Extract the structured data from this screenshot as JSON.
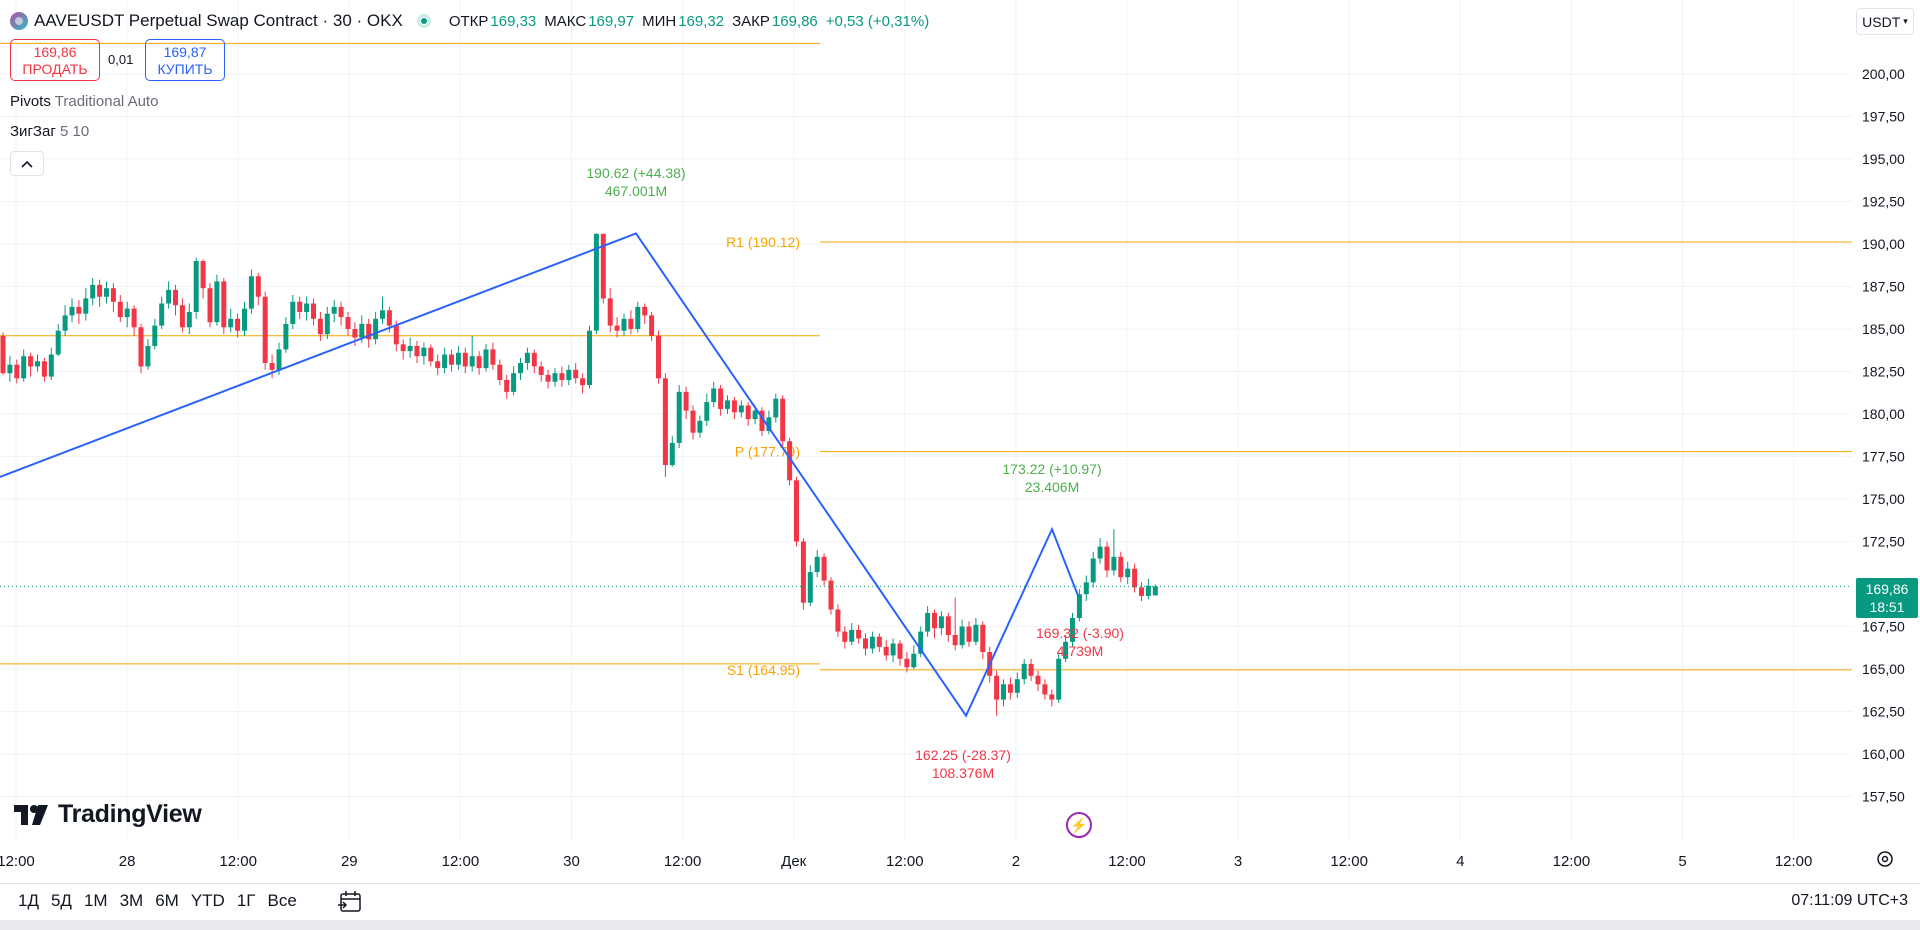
{
  "header": {
    "symbol_title": "AAVEUSDT Perpetual Swap Contract · 30 · OKX",
    "open_label": "ОТКР",
    "open_value": "169,33",
    "high_label": "МАКС",
    "high_value": "169,97",
    "low_label": "МИН",
    "low_value": "169,32",
    "close_label": "ЗАКР",
    "close_value": "169,86",
    "change": "+0,53 (+0,31%)"
  },
  "trade": {
    "sell_price": "169,86",
    "sell_label": "ПРОДАТЬ",
    "spread": "0,01",
    "buy_price": "169,87",
    "buy_label": "КУПИТЬ"
  },
  "indicators": [
    {
      "name": "Pivots",
      "params": "Traditional Auto"
    },
    {
      "name": "ЗигЗаг",
      "params": "5 10"
    }
  ],
  "collapse_icon": "chevron-up-icon",
  "currency": "USDT",
  "last_price": {
    "price": "169,86",
    "countdown": "18:51"
  },
  "logo_text": "TradingView",
  "ranges": [
    "1Д",
    "5Д",
    "1М",
    "3М",
    "6М",
    "YTD",
    "1Г",
    "Все"
  ],
  "clock": "07:11:09 UTC+3",
  "colors": {
    "up": "#089981",
    "down": "#f23645",
    "pivot": "#f7a400",
    "zigzag": "#2962ff",
    "grid": "#f0f3fa"
  },
  "chart_data": {
    "type": "candlestick",
    "interval": "30",
    "ylim": [
      156.25,
      201.8
    ],
    "y_ticks": [
      "200,00",
      "197,50",
      "195,00",
      "192,50",
      "190,00",
      "187,50",
      "185,00",
      "182,50",
      "180,00",
      "177,50",
      "175,00",
      "172,50",
      "167,50",
      "165,00",
      "162,50",
      "160,00",
      "157,50"
    ],
    "x_ticks": [
      "12:00",
      "28",
      "12:00",
      "29",
      "12:00",
      "30",
      "12:00",
      "Дек",
      "12:00",
      "2",
      "12:00",
      "3",
      "12:00",
      "4",
      "12:00",
      "5",
      "12:00"
    ],
    "pivots": [
      {
        "label": "R1 (190.12)",
        "value": 190.12
      },
      {
        "label": "P (177.79)",
        "value": 177.79
      },
      {
        "label": "S1 (164.95)",
        "value": 164.95
      }
    ],
    "prior_pivot_levels": [
      201.8,
      184.6,
      165.3
    ],
    "zigzag": [
      {
        "x": "-1",
        "y": 176.3
      },
      {
        "x": "30 10:30",
        "y": 190.62,
        "label": "190.62 (+44.38)",
        "volume": "467.001M"
      },
      {
        "x": "1 20:00",
        "y": 162.25,
        "label": "162.25 (-28.37)",
        "volume": "108.376M"
      },
      {
        "x": "2 04:30",
        "y": 173.22,
        "label": "173.22 (+10.97)",
        "volume": "23.406M"
      },
      {
        "x": "2 08:30",
        "y": 169.32,
        "label": "169.32 (-3.90)",
        "volume": "4.739M"
      }
    ],
    "last": 169.86,
    "candles": [
      [
        184.6,
        182.4,
        184.8,
        182.3
      ],
      [
        182.4,
        182.9,
        183.4,
        181.9
      ],
      [
        182.9,
        182.1,
        183.2,
        181.8
      ],
      [
        182.1,
        183.4,
        183.8,
        181.9
      ],
      [
        183.4,
        182.8,
        183.6,
        182.2
      ],
      [
        182.8,
        183.1,
        183.5,
        182.5
      ],
      [
        183.1,
        182.2,
        183.3,
        181.9
      ],
      [
        182.2,
        183.5,
        183.9,
        182.0
      ],
      [
        183.5,
        184.9,
        185.3,
        183.4
      ],
      [
        184.9,
        185.8,
        186.4,
        184.6
      ],
      [
        185.8,
        186.3,
        186.8,
        185.4
      ],
      [
        186.3,
        185.9,
        186.7,
        185.3
      ],
      [
        185.9,
        186.8,
        187.4,
        185.5
      ],
      [
        186.8,
        187.6,
        188.0,
        186.4
      ],
      [
        187.6,
        186.9,
        187.9,
        186.3
      ],
      [
        186.9,
        187.4,
        187.8,
        186.5
      ],
      [
        187.4,
        186.6,
        187.7,
        186.0
      ],
      [
        186.6,
        185.7,
        187.0,
        185.4
      ],
      [
        185.7,
        186.2,
        186.6,
        185.1
      ],
      [
        186.2,
        185.1,
        186.4,
        184.6
      ],
      [
        185.1,
        182.8,
        185.3,
        182.4
      ],
      [
        182.8,
        184.0,
        184.4,
        182.6
      ],
      [
        184.0,
        185.2,
        185.6,
        183.8
      ],
      [
        185.2,
        186.5,
        186.9,
        185.0
      ],
      [
        186.5,
        187.3,
        187.8,
        186.2
      ],
      [
        187.3,
        186.4,
        187.6,
        185.8
      ],
      [
        186.4,
        185.1,
        186.8,
        184.8
      ],
      [
        185.1,
        186.0,
        186.5,
        184.7
      ],
      [
        186.0,
        189.0,
        189.2,
        185.6
      ],
      [
        189.0,
        187.4,
        189.1,
        186.8
      ],
      [
        187.4,
        185.4,
        187.7,
        185.1
      ],
      [
        185.4,
        187.8,
        188.2,
        185.2
      ],
      [
        187.8,
        185.1,
        188.0,
        184.7
      ],
      [
        185.1,
        185.6,
        186.2,
        184.8
      ],
      [
        185.6,
        184.9,
        185.9,
        184.5
      ],
      [
        184.9,
        186.2,
        186.6,
        184.6
      ],
      [
        186.2,
        188.1,
        188.5,
        185.9
      ],
      [
        188.1,
        186.9,
        188.3,
        186.4
      ],
      [
        186.9,
        183.0,
        187.2,
        182.6
      ],
      [
        183.0,
        182.6,
        183.5,
        182.1
      ],
      [
        182.6,
        183.8,
        184.2,
        182.3
      ],
      [
        183.8,
        185.3,
        185.7,
        183.6
      ],
      [
        185.3,
        186.6,
        187.0,
        185.0
      ],
      [
        186.6,
        186.0,
        186.9,
        185.6
      ],
      [
        186.0,
        186.5,
        186.9,
        185.5
      ],
      [
        186.5,
        185.6,
        186.8,
        185.2
      ],
      [
        185.6,
        184.7,
        186.0,
        184.3
      ],
      [
        184.7,
        185.9,
        186.3,
        184.4
      ],
      [
        185.9,
        186.3,
        186.7,
        185.4
      ],
      [
        186.3,
        185.7,
        186.6,
        185.2
      ],
      [
        185.7,
        185.0,
        186.0,
        184.6
      ],
      [
        185.0,
        184.5,
        185.4,
        184.0
      ],
      [
        184.5,
        185.3,
        185.8,
        184.2
      ],
      [
        185.3,
        184.4,
        185.6,
        183.9
      ],
      [
        184.4,
        185.6,
        186.0,
        184.1
      ],
      [
        185.6,
        186.1,
        186.9,
        185.3
      ],
      [
        186.1,
        185.2,
        186.3,
        184.8
      ],
      [
        185.2,
        184.1,
        185.5,
        183.7
      ],
      [
        184.1,
        183.7,
        184.4,
        183.2
      ],
      [
        183.7,
        184.0,
        184.5,
        183.3
      ],
      [
        184.0,
        183.4,
        184.3,
        183.0
      ],
      [
        183.4,
        183.9,
        184.2,
        182.9
      ],
      [
        183.9,
        183.1,
        184.1,
        182.8
      ],
      [
        183.1,
        182.7,
        183.5,
        182.3
      ],
      [
        182.7,
        183.5,
        183.9,
        182.4
      ],
      [
        183.5,
        182.9,
        183.8,
        182.5
      ],
      [
        182.9,
        183.6,
        184.0,
        182.6
      ],
      [
        183.6,
        182.8,
        183.9,
        182.4
      ],
      [
        182.8,
        183.4,
        184.6,
        182.5
      ],
      [
        183.4,
        182.7,
        183.7,
        182.3
      ],
      [
        182.7,
        183.8,
        184.1,
        182.5
      ],
      [
        183.8,
        182.9,
        184.2,
        182.6
      ],
      [
        182.9,
        182.0,
        183.2,
        181.7
      ],
      [
        182.0,
        181.3,
        182.3,
        180.9
      ],
      [
        181.3,
        182.4,
        182.8,
        181.1
      ],
      [
        182.4,
        183.0,
        183.3,
        182.0
      ],
      [
        183.0,
        183.6,
        183.9,
        182.6
      ],
      [
        183.6,
        182.8,
        183.8,
        182.4
      ],
      [
        182.8,
        182.3,
        183.1,
        181.9
      ],
      [
        182.3,
        181.9,
        182.6,
        181.5
      ],
      [
        181.9,
        182.4,
        182.7,
        181.6
      ],
      [
        182.4,
        182.0,
        182.8,
        181.6
      ],
      [
        182.0,
        182.6,
        182.9,
        181.7
      ],
      [
        182.6,
        182.1,
        183.0,
        181.8
      ],
      [
        182.1,
        181.7,
        182.4,
        181.2
      ],
      [
        181.7,
        184.9,
        185.2,
        181.5
      ],
      [
        184.9,
        190.6,
        190.62,
        184.7
      ],
      [
        190.6,
        186.8,
        190.4,
        186.5
      ],
      [
        186.8,
        185.2,
        187.4,
        184.8
      ],
      [
        185.2,
        184.9,
        185.7,
        184.5
      ],
      [
        184.9,
        185.6,
        185.9,
        184.6
      ],
      [
        185.6,
        185.0,
        186.1,
        184.7
      ],
      [
        185.0,
        186.3,
        186.6,
        184.8
      ],
      [
        186.3,
        185.8,
        186.5,
        185.3
      ],
      [
        185.8,
        184.6,
        186.0,
        184.3
      ],
      [
        184.6,
        182.1,
        184.9,
        181.8
      ],
      [
        182.1,
        177.0,
        182.4,
        176.3
      ],
      [
        177.0,
        178.3,
        178.7,
        176.9
      ],
      [
        178.3,
        181.3,
        181.7,
        178.0
      ],
      [
        181.3,
        180.2,
        181.6,
        179.7
      ],
      [
        180.2,
        178.9,
        180.5,
        178.5
      ],
      [
        178.9,
        179.6,
        179.9,
        178.6
      ],
      [
        179.6,
        180.7,
        181.2,
        179.3
      ],
      [
        180.7,
        181.5,
        181.9,
        180.4
      ],
      [
        181.5,
        180.3,
        181.7,
        179.9
      ],
      [
        180.3,
        180.8,
        181.1,
        180.0
      ],
      [
        180.8,
        180.1,
        181.0,
        179.7
      ],
      [
        180.1,
        180.5,
        180.8,
        179.8
      ],
      [
        180.5,
        179.7,
        180.7,
        179.3
      ],
      [
        179.7,
        180.2,
        180.5,
        179.4
      ],
      [
        180.2,
        179.0,
        180.4,
        178.7
      ],
      [
        179.0,
        179.8,
        180.2,
        178.8
      ],
      [
        179.8,
        180.9,
        181.2,
        179.5
      ],
      [
        180.9,
        178.4,
        181.1,
        178.1
      ],
      [
        178.4,
        176.1,
        178.6,
        175.8
      ],
      [
        176.1,
        172.5,
        176.3,
        172.2
      ],
      [
        172.5,
        168.9,
        172.7,
        168.5
      ],
      [
        168.9,
        170.7,
        171.1,
        168.7
      ],
      [
        170.7,
        171.6,
        172.0,
        170.4
      ],
      [
        171.6,
        170.2,
        171.8,
        169.9
      ],
      [
        170.2,
        168.5,
        170.4,
        168.2
      ],
      [
        168.5,
        167.2,
        168.8,
        166.9
      ],
      [
        167.2,
        166.6,
        167.5,
        166.2
      ],
      [
        166.6,
        167.3,
        167.7,
        166.4
      ],
      [
        167.3,
        166.8,
        167.6,
        166.5
      ],
      [
        166.8,
        166.2,
        167.1,
        165.8
      ],
      [
        166.2,
        166.9,
        167.2,
        165.9
      ],
      [
        166.9,
        166.3,
        167.1,
        166.0
      ],
      [
        166.3,
        165.8,
        166.7,
        165.5
      ],
      [
        165.8,
        166.5,
        166.8,
        165.4
      ],
      [
        166.5,
        165.6,
        166.7,
        165.2
      ],
      [
        165.6,
        165.1,
        166.0,
        164.8
      ],
      [
        165.1,
        165.9,
        166.4,
        165.0
      ],
      [
        165.9,
        167.2,
        167.5,
        165.7
      ],
      [
        167.2,
        168.3,
        168.7,
        166.9
      ],
      [
        168.3,
        167.4,
        168.5,
        166.8
      ],
      [
        167.4,
        168.1,
        168.4,
        167.0
      ],
      [
        168.1,
        167.0,
        168.3,
        166.6
      ],
      [
        167.0,
        166.4,
        169.2,
        166.1
      ],
      [
        166.4,
        167.5,
        167.9,
        166.2
      ],
      [
        167.5,
        166.6,
        167.8,
        166.3
      ],
      [
        166.6,
        167.6,
        168.0,
        166.4
      ],
      [
        167.6,
        166.0,
        167.8,
        165.6
      ],
      [
        166.0,
        164.6,
        166.3,
        164.2
      ],
      [
        164.6,
        163.2,
        164.9,
        162.25
      ],
      [
        163.2,
        164.1,
        164.4,
        162.8
      ],
      [
        164.1,
        163.6,
        164.5,
        163.2
      ],
      [
        163.6,
        164.4,
        164.8,
        163.3
      ],
      [
        164.4,
        165.3,
        165.6,
        164.1
      ],
      [
        165.3,
        164.6,
        165.6,
        164.3
      ],
      [
        164.6,
        164.1,
        164.9,
        163.7
      ],
      [
        164.1,
        163.5,
        164.4,
        163.2
      ],
      [
        163.5,
        163.2,
        163.8,
        162.8
      ],
      [
        163.2,
        165.6,
        165.9,
        163.0
      ],
      [
        165.6,
        166.6,
        167.0,
        165.4
      ],
      [
        166.6,
        168.0,
        168.3,
        166.3
      ],
      [
        168.0,
        169.4,
        169.7,
        167.8
      ],
      [
        169.4,
        170.1,
        170.5,
        169.0
      ],
      [
        170.1,
        171.5,
        171.9,
        169.8
      ],
      [
        171.5,
        172.2,
        172.7,
        171.2
      ],
      [
        172.2,
        170.8,
        172.5,
        170.4
      ],
      [
        170.8,
        171.6,
        173.22,
        170.5
      ],
      [
        171.6,
        170.4,
        171.9,
        170.1
      ],
      [
        170.4,
        170.9,
        171.3,
        170.0
      ],
      [
        170.9,
        169.8,
        171.2,
        169.5
      ],
      [
        169.8,
        169.3,
        170.1,
        169.0
      ],
      [
        169.3,
        169.9,
        170.3,
        169.1
      ],
      [
        169.33,
        169.86,
        169.97,
        169.32
      ]
    ]
  }
}
